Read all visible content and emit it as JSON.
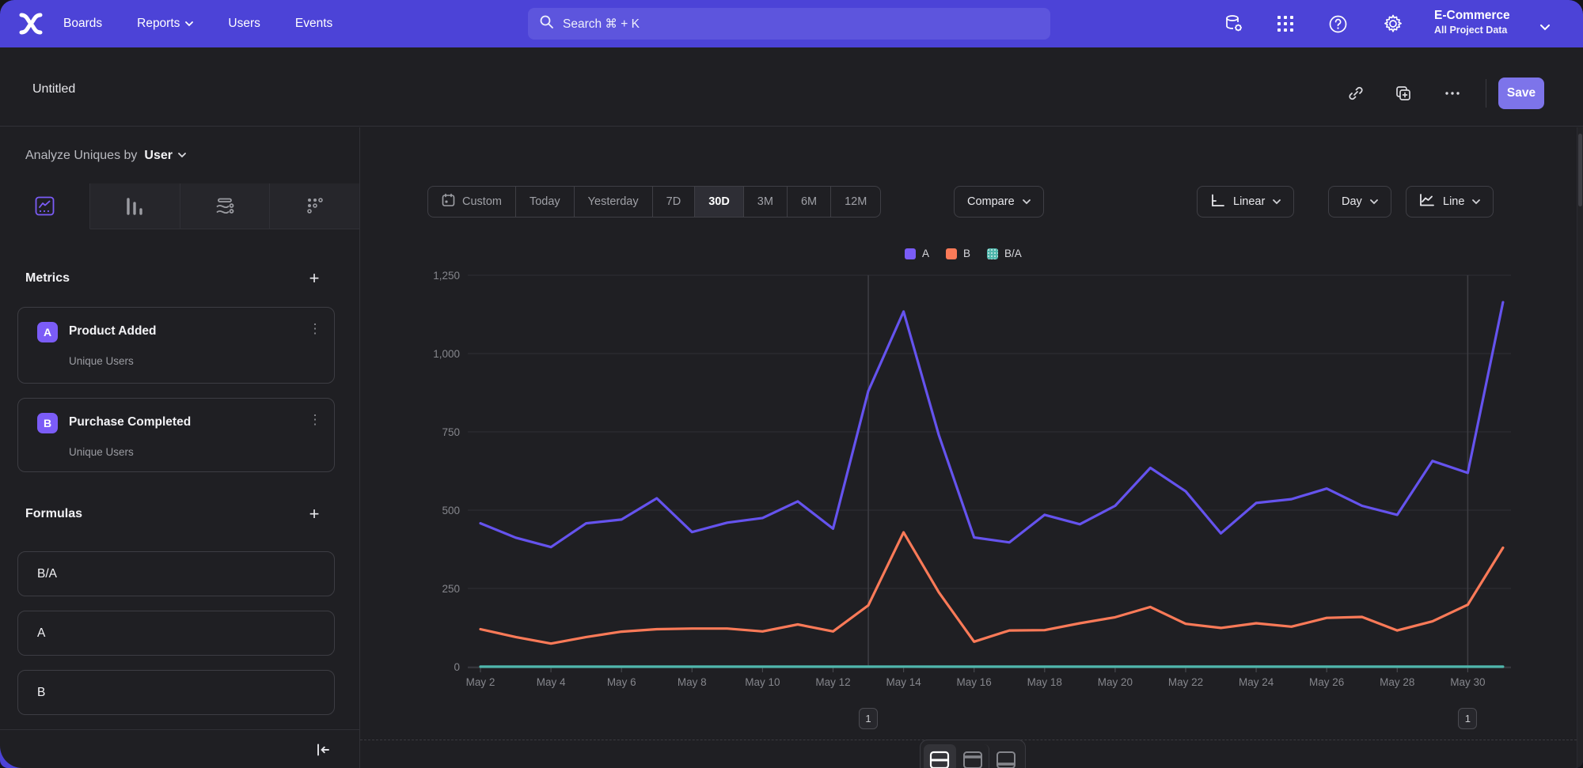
{
  "navbar": {
    "items": [
      {
        "label": "Boards",
        "has_dropdown": false
      },
      {
        "label": "Reports",
        "has_dropdown": true
      },
      {
        "label": "Users",
        "has_dropdown": false
      },
      {
        "label": "Events",
        "has_dropdown": false
      }
    ],
    "search": {
      "placeholder": "Search  ⌘ + K"
    },
    "icons": [
      "data-management-icon",
      "apps-grid-icon",
      "help-icon",
      "settings-gear-icon"
    ],
    "project": {
      "name": "E-Commerce",
      "scope": "All Project Data"
    }
  },
  "titlebar": {
    "title": "Untitled",
    "save_label": "Save",
    "icons": [
      "copy-link-icon",
      "duplicate-icon",
      "more-options-icon"
    ]
  },
  "sidebar": {
    "analyze_label": "Analyze Uniques by",
    "analyze_value": "User",
    "tabs": [
      "insights-line-tab",
      "bar-chart-tab",
      "flows-tab",
      "retention-tab"
    ],
    "metrics": {
      "title": "Metrics",
      "items": [
        {
          "badge": "A",
          "name": "Product Added",
          "subtitle": "Unique Users"
        },
        {
          "badge": "B",
          "name": "Purchase Completed",
          "subtitle": "Unique Users"
        }
      ]
    },
    "formulas": {
      "title": "Formulas",
      "items": [
        {
          "label": "B/A"
        },
        {
          "label": "A"
        },
        {
          "label": "B"
        }
      ]
    }
  },
  "controls": {
    "ranges": [
      {
        "label": "Custom"
      },
      {
        "label": "Today"
      },
      {
        "label": "Yesterday"
      },
      {
        "label": "7D"
      },
      {
        "label": "30D"
      },
      {
        "label": "3M"
      },
      {
        "label": "6M"
      },
      {
        "label": "12M"
      }
    ],
    "active_range": "30D",
    "compare_label": "Compare",
    "scale_label": "Linear",
    "granularity_label": "Day",
    "chart_type_label": "Line"
  },
  "legend": [
    {
      "label": "A",
      "color": "#7a5cf7"
    },
    {
      "label": "B",
      "color": "#fb7a58"
    },
    {
      "label": "B/A",
      "color": "#4fb6ac"
    }
  ],
  "colors": {
    "navbar": "#4c43d7",
    "accent_purple": "#7b5cf7",
    "series_a": "#6553ee",
    "series_b": "#fb7a58",
    "series_ba": "#4fb6ac",
    "save_button": "#7d74ea"
  },
  "chart_data": {
    "type": "line",
    "x": [
      "May 2",
      "May 3",
      "May 4",
      "May 5",
      "May 6",
      "May 7",
      "May 8",
      "May 9",
      "May 10",
      "May 11",
      "May 12",
      "May 13",
      "May 14",
      "May 15",
      "May 16",
      "May 17",
      "May 18",
      "May 19",
      "May 20",
      "May 21",
      "May 22",
      "May 23",
      "May 24",
      "May 25",
      "May 26",
      "May 27",
      "May 28",
      "May 29",
      "May 30",
      "May 31"
    ],
    "x_tick_labels": [
      "May 2",
      "May 4",
      "May 6",
      "May 8",
      "May 10",
      "May 12",
      "May 14",
      "May 16",
      "May 18",
      "May 20",
      "May 22",
      "May 24",
      "May 26",
      "May 28",
      "May 30"
    ],
    "series": [
      {
        "name": "A",
        "color": "#6553ee",
        "values": [
          458,
          412,
          382,
          458,
          470,
          538,
          430,
          460,
          475,
          528,
          441,
          880,
          1134,
          740,
          413,
          397,
          485,
          455,
          514,
          635,
          560,
          426,
          523,
          535,
          569,
          514,
          485,
          657,
          619,
          1164
        ]
      },
      {
        "name": "B",
        "color": "#fb7a58",
        "values": [
          120,
          95,
          74,
          95,
          112,
          120,
          122,
          122,
          113,
          135,
          113,
          196,
          429,
          238,
          80,
          116,
          117,
          139,
          158,
          191,
          137,
          124,
          139,
          128,
          156,
          159,
          116,
          145,
          198,
          380
        ]
      },
      {
        "name": "B/A",
        "color": "#4fb6ac",
        "values": [
          0.26,
          0.23,
          0.19,
          0.21,
          0.24,
          0.22,
          0.28,
          0.27,
          0.24,
          0.26,
          0.26,
          0.22,
          0.38,
          0.32,
          0.19,
          0.29,
          0.24,
          0.31,
          0.31,
          0.3,
          0.24,
          0.29,
          0.27,
          0.24,
          0.27,
          0.31,
          0.24,
          0.22,
          0.32,
          0.33
        ]
      }
    ],
    "ylim": [
      0,
      1250
    ],
    "yticks": [
      0,
      250,
      500,
      750,
      1000,
      1250
    ],
    "ytick_labels": [
      "0",
      "250",
      "500",
      "750",
      "1,000",
      "1,250"
    ],
    "grid": "horizontal",
    "vertical_markers": [
      {
        "date": "May 13",
        "label": "1"
      },
      {
        "date": "May 30",
        "label": "1"
      }
    ],
    "legend_position": "top-center"
  }
}
